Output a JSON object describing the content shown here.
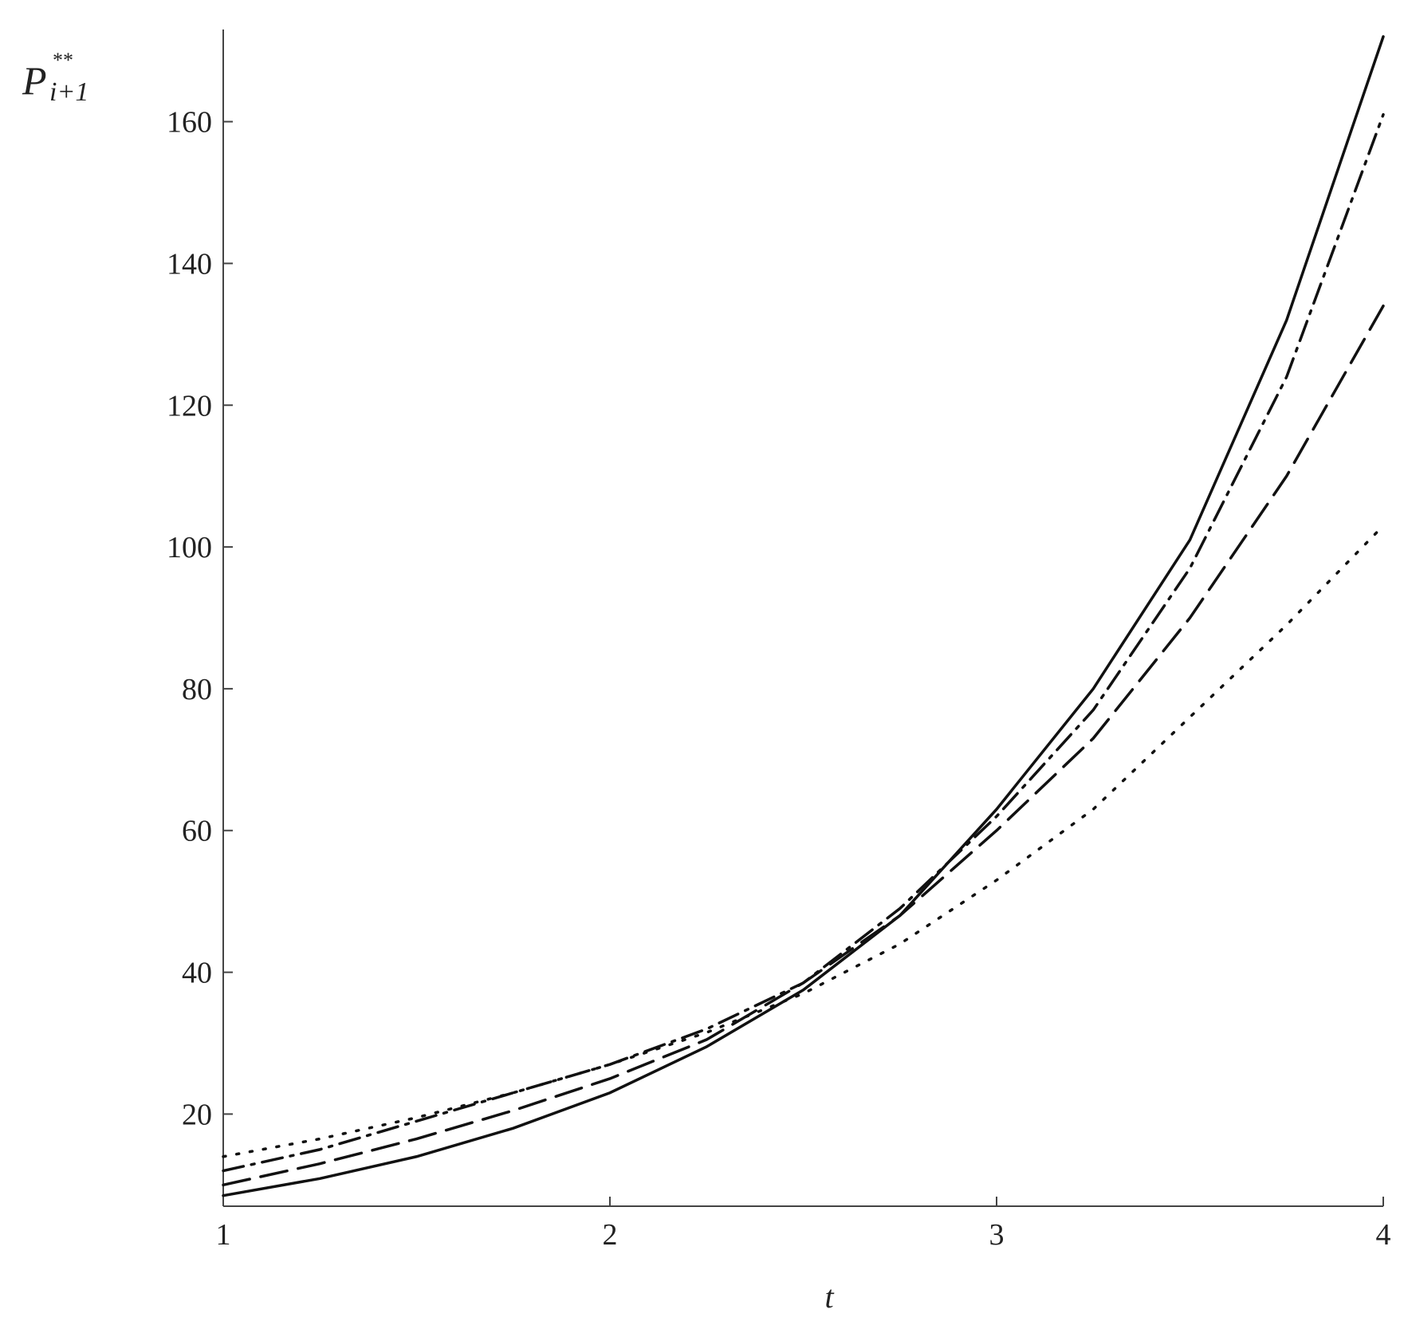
{
  "chart_data": {
    "type": "line",
    "xlabel": "t",
    "ylabel": "P",
    "ylabel_sub": "i+1",
    "ylabel_sup": "**",
    "x": [
      1,
      1.25,
      1.5,
      1.75,
      2,
      2.25,
      2.5,
      2.75,
      3,
      3.25,
      3.5,
      3.75,
      4
    ],
    "series": [
      {
        "color": "#111111",
        "dash": "solid",
        "values": [
          8.5,
          10.9,
          14,
          18,
          23,
          29.5,
          37.5,
          48,
          63,
          80,
          101,
          132,
          172
        ]
      },
      {
        "color": "#111111",
        "dash": "dashdot",
        "values": [
          12,
          15,
          19,
          23,
          27,
          32,
          38.5,
          49,
          62,
          77,
          97,
          124,
          161
        ]
      },
      {
        "color": "#111111",
        "dash": "longdash",
        "values": [
          10,
          13,
          16.5,
          20.5,
          25,
          30.5,
          38.5,
          48,
          60,
          73,
          90,
          110,
          134
        ]
      },
      {
        "color": "#111111",
        "dash": "dotted",
        "values": [
          14,
          16.5,
          19.5,
          23,
          27,
          31.5,
          37,
          44,
          53,
          63,
          76,
          89,
          103
        ]
      }
    ],
    "xlim": [
      1,
      4
    ],
    "xticks": [
      1,
      2,
      3,
      4
    ],
    "ylim": [
      7,
      173
    ],
    "yticks": [
      20,
      40,
      60,
      80,
      100,
      120,
      140,
      160
    ],
    "grid": false
  }
}
